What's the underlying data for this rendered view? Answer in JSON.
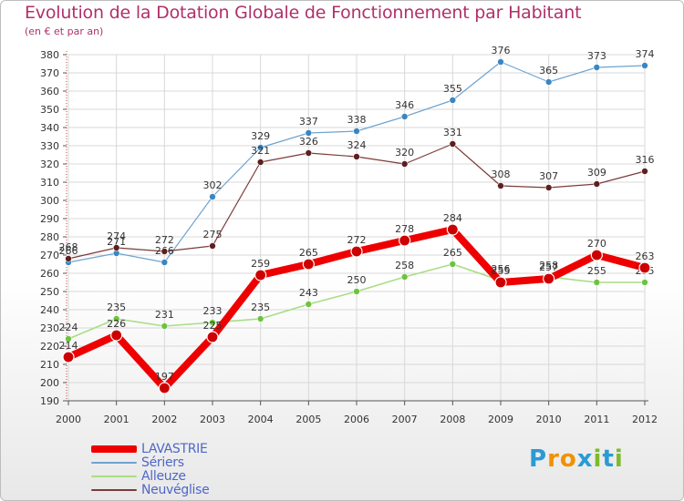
{
  "title": "Evolution de la Dotation Globale de Fonctionnement par Habitant",
  "subtitle": "(en € et par an)",
  "logo": {
    "text": "Proxiti",
    "letters": [
      "P",
      "r",
      "o",
      "x",
      "i",
      "t",
      "i"
    ],
    "colors": [
      "#2a9bd4",
      "#f29100",
      "#f29100",
      "#2a9bd4",
      "#7dbb2b",
      "#2a9bd4",
      "#7dbb2b"
    ]
  },
  "chart_data": {
    "type": "line",
    "title": "Evolution de la Dotation Globale de Fonctionnement par Habitant",
    "ylabel": "(en € et par an)",
    "xlabel": "",
    "ylim": [
      190,
      380
    ],
    "yticks": [
      190,
      200,
      210,
      220,
      230,
      240,
      250,
      260,
      270,
      280,
      290,
      300,
      310,
      320,
      330,
      340,
      350,
      360,
      370,
      380
    ],
    "grid": true,
    "categories": [
      "2000",
      "2001",
      "2002",
      "2003",
      "2004",
      "2005",
      "2006",
      "2007",
      "2008",
      "2009",
      "2010",
      "2011",
      "2012"
    ],
    "series": [
      {
        "name": "Sériers",
        "color": "#6fa3cf",
        "marker": "#3a86c2",
        "width": 1.2,
        "radius": 3.5,
        "values": [
          266,
          271,
          266,
          302,
          329,
          337,
          338,
          346,
          355,
          376,
          365,
          373,
          374
        ],
        "labels": [
          "266",
          "271",
          "266",
          "302",
          "329",
          "337",
          "338",
          "346",
          "355",
          "376",
          "365",
          "373",
          "374"
        ]
      },
      {
        "name": "Neuvéglise",
        "color": "#7b3b3b",
        "marker": "#5e1f1f",
        "width": 1.2,
        "radius": 3.5,
        "values": [
          268,
          274,
          272,
          275,
          321,
          326,
          324,
          320,
          331,
          308,
          307,
          309,
          316
        ],
        "labels": [
          "268",
          "274",
          "272",
          "275",
          "321",
          "326",
          "324",
          "320",
          "331",
          "308",
          "307",
          "309",
          "316"
        ]
      },
      {
        "name": "Alleuze",
        "color": "#a8dd85",
        "marker": "#6cc43c",
        "width": 1.6,
        "radius": 3.5,
        "values": [
          224,
          235,
          231,
          233,
          235,
          243,
          250,
          258,
          265,
          256,
          258,
          255,
          255
        ],
        "labels": [
          "224",
          "235",
          "231",
          "233",
          "235",
          "243",
          "250",
          "258",
          "265",
          "256",
          "258",
          "255",
          "255"
        ]
      },
      {
        "name": "LAVASTRIE",
        "color": "#ee0000",
        "marker": "#cc0000",
        "width": 8,
        "radius": 6,
        "values": [
          214,
          226,
          197,
          225,
          259,
          265,
          272,
          278,
          284,
          255,
          257,
          270,
          263
        ],
        "labels": [
          "214",
          "226",
          "197",
          "225",
          "259",
          "265",
          "272",
          "278",
          "284",
          "255",
          "257",
          "270",
          "263"
        ]
      }
    ],
    "legend": [
      "LAVASTRIE",
      "Sériers",
      "Alleuze",
      "Neuvéglise"
    ]
  }
}
